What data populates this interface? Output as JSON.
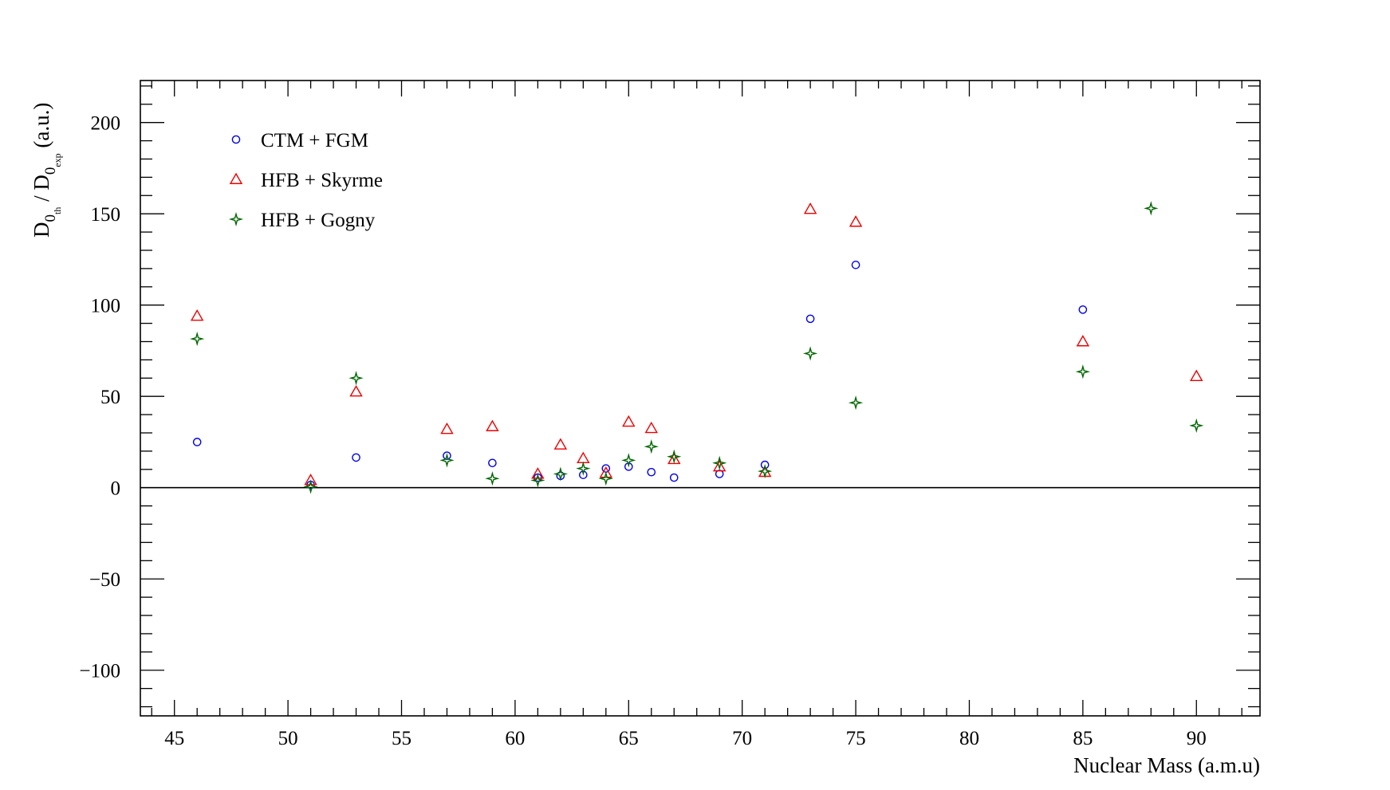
{
  "chart_data": {
    "type": "scatter",
    "xlabel": "Nuclear Mass (a.m.u)",
    "ylabel": {
      "main": "D",
      "sub1": "0",
      "subsub1": "th",
      "sep": " / D",
      "sub2": "0",
      "subsub2": "exp",
      "unit": " (a.u.)"
    },
    "xlim": [
      43.5,
      92.8
    ],
    "ylim": [
      -125,
      223
    ],
    "x_ticks": [
      45,
      50,
      55,
      60,
      65,
      70,
      75,
      80,
      85,
      90
    ],
    "y_ticks": [
      -100,
      -50,
      0,
      50,
      100,
      150,
      200
    ],
    "x_tick_labels": [
      "45",
      "50",
      "55",
      "60",
      "65",
      "70",
      "75",
      "80",
      "85",
      "90"
    ],
    "y_tick_labels": [
      "−100",
      "−50",
      "0",
      "50",
      "100",
      "150",
      "200"
    ],
    "grid": false,
    "reference_line_y": 0,
    "legend_position": "top-left",
    "series": [
      {
        "name": "CTM + FGM",
        "marker": "circle",
        "color": "#0000ee",
        "points": [
          [
            46,
            25
          ],
          [
            51,
            1.5
          ],
          [
            53,
            16.5
          ],
          [
            57,
            17.5
          ],
          [
            59,
            13.5
          ],
          [
            61,
            5.5
          ],
          [
            62,
            6.5
          ],
          [
            63,
            7
          ],
          [
            64,
            10.5
          ],
          [
            65,
            11.5
          ],
          [
            66,
            8.5
          ],
          [
            67,
            5.5
          ],
          [
            69,
            7.5
          ],
          [
            71,
            12.5
          ],
          [
            73,
            92.5
          ],
          [
            75,
            122
          ],
          [
            85,
            97.5
          ]
        ]
      },
      {
        "name": "HFB + Skyrme",
        "marker": "triangle",
        "color": "#ee0000",
        "points": [
          [
            46,
            94
          ],
          [
            51,
            4
          ],
          [
            53,
            52.5
          ],
          [
            57,
            32
          ],
          [
            59,
            33.5
          ],
          [
            61,
            7.5
          ],
          [
            62,
            23.5
          ],
          [
            63,
            16
          ],
          [
            64,
            8
          ],
          [
            65,
            36
          ],
          [
            66,
            32.5
          ],
          [
            67,
            15.5
          ],
          [
            69,
            11.5
          ],
          [
            71,
            8.5
          ],
          [
            73,
            152.5
          ],
          [
            75,
            145.5
          ],
          [
            85,
            80
          ],
          [
            90,
            61
          ]
        ]
      },
      {
        "name": "HFB + Gogny",
        "marker": "diamond-star",
        "color": "#006600",
        "points": [
          [
            46,
            81.5
          ],
          [
            51,
            0.5
          ],
          [
            53,
            60
          ],
          [
            57,
            15
          ],
          [
            59,
            5
          ],
          [
            61,
            4
          ],
          [
            62,
            7.5
          ],
          [
            63,
            10.5
          ],
          [
            64,
            5
          ],
          [
            65,
            15
          ],
          [
            66,
            22.5
          ],
          [
            67,
            17
          ],
          [
            69,
            13.5
          ],
          [
            71,
            9
          ],
          [
            73,
            73.5
          ],
          [
            75,
            46.5
          ],
          [
            85,
            63.5
          ],
          [
            88,
            153
          ],
          [
            90,
            34
          ]
        ]
      }
    ]
  }
}
